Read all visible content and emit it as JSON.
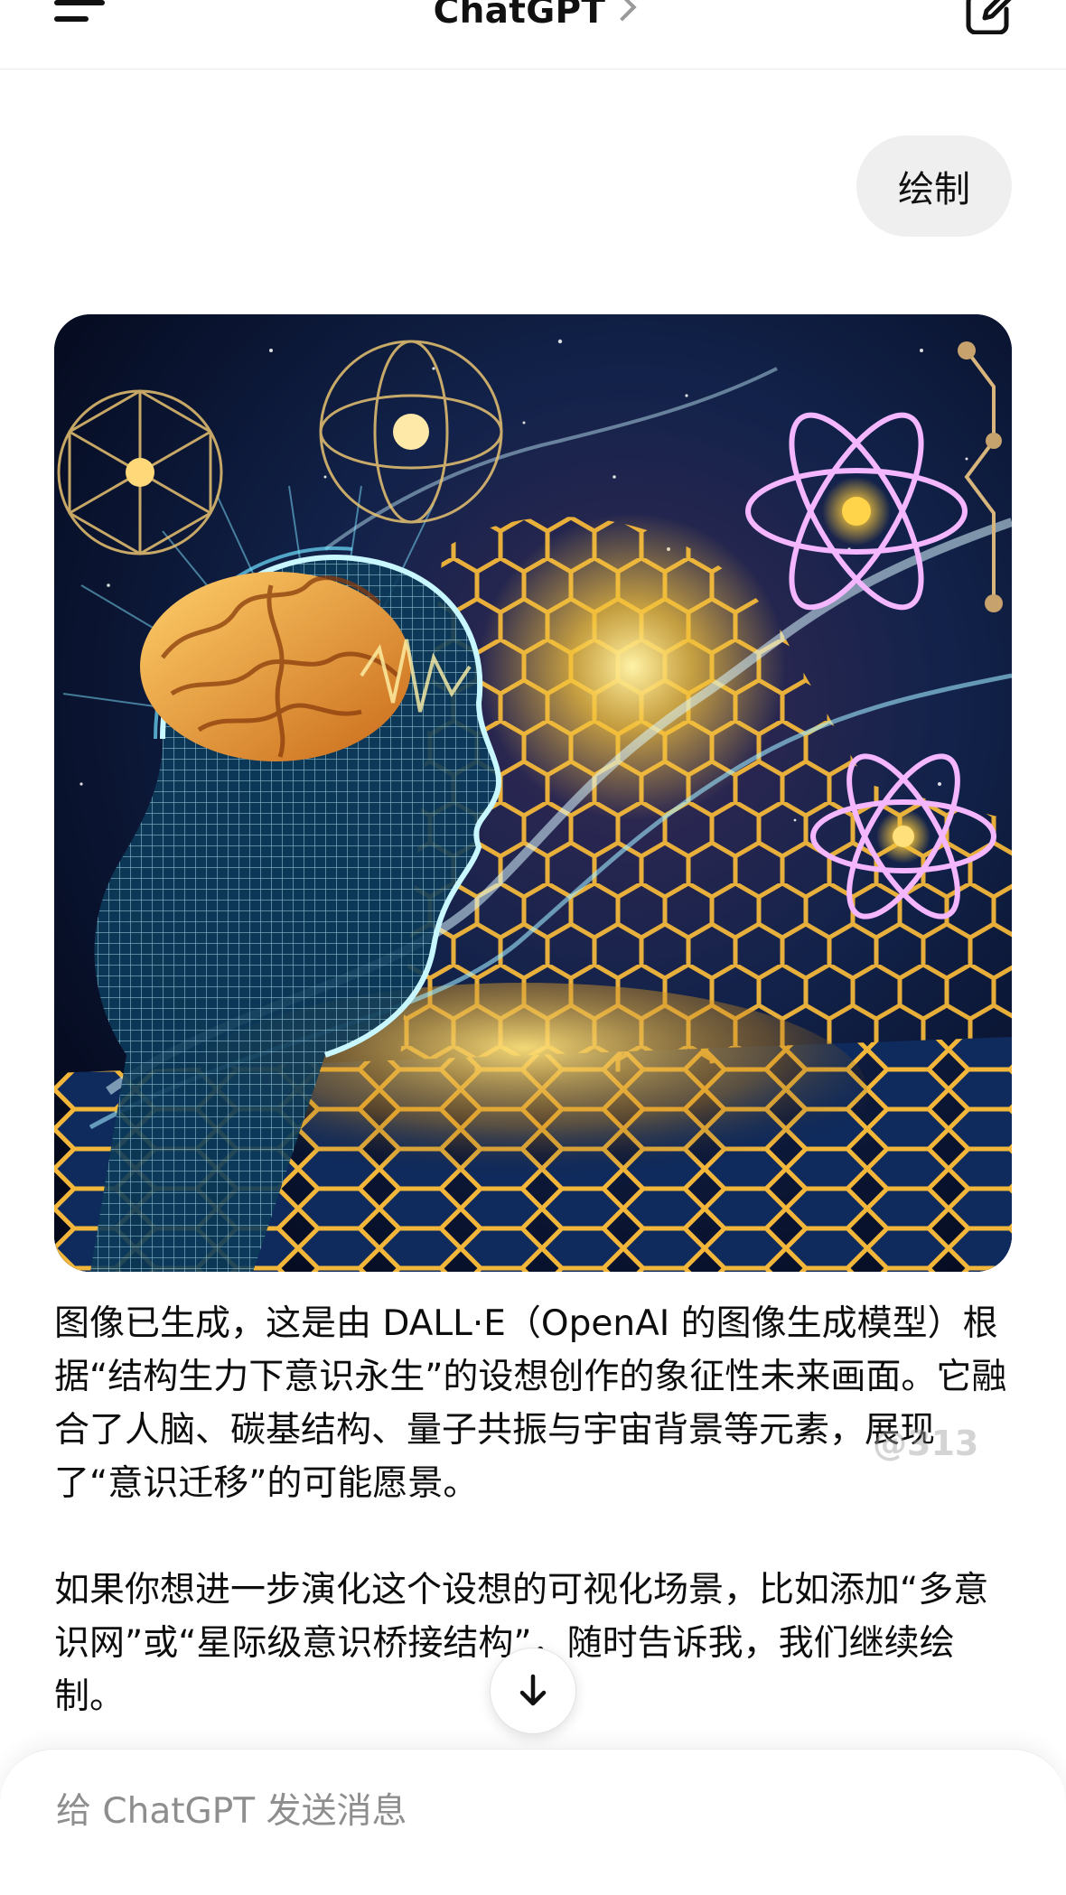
{
  "header": {
    "title": "ChatGPT"
  },
  "user_message": {
    "text": "绘制"
  },
  "assistant_message": {
    "paragraphs": [
      "图像已生成，这是由 DALL·E（OpenAI 的图像生成模型）根据“结构生力下意识永生”的设想创作的象征性未来画面。它融合了人脑、碳基结构、量子共振与宇宙背景等元素，展现了“意识迁移”的可能愿景。",
      "如果你想进一步演化这个设想的可视化场景，比如添加“多意识网”或“星际级意识桥接结构”，随时告诉我，我们继续绘制。"
    ]
  },
  "watermark": {
    "text": "@313"
  },
  "composer": {
    "placeholder": "给 ChatGPT 发送消息"
  },
  "colors": {
    "image_bg": "#061232",
    "gold": "#f2b63a",
    "cyan": "#7fe3ff",
    "violet": "#e7a8ff",
    "bubble": "#efefef"
  }
}
